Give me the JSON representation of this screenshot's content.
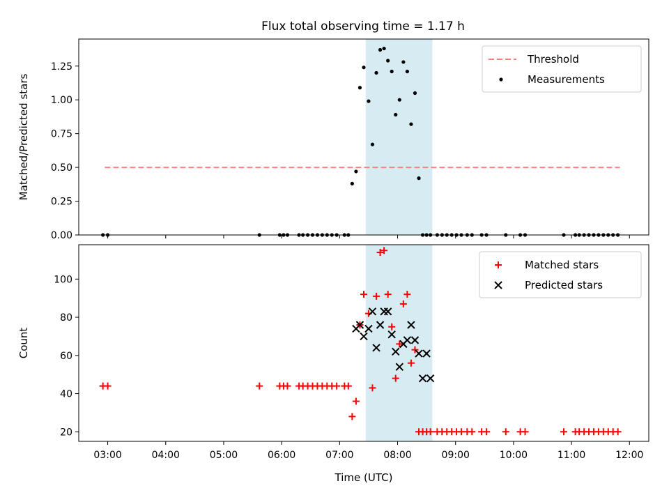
{
  "title": "Flux total observing time = 1.17 h",
  "chart_data": [
    {
      "type": "scatter",
      "ylabel": "Matched/Predicted stars",
      "xlim": [
        "02:30",
        "12:20"
      ],
      "ylim": [
        0,
        1.45
      ],
      "yticks": [
        0,
        0.25,
        0.5,
        0.75,
        1.0,
        1.25
      ],
      "ytick_labels": [
        "0.00",
        "0.25",
        "0.50",
        "0.75",
        "1.00",
        "1.25"
      ],
      "shaded_region": {
        "x0": "07:27",
        "x1": "08:36",
        "color": "#add8e6"
      },
      "legend_location": "upper right",
      "series": [
        {
          "name": "Threshold",
          "kind": "dashed-line",
          "color": "#ff7f7f",
          "x": [
            "02:57",
            "11:50"
          ],
          "y": [
            0.5,
            0.5
          ]
        },
        {
          "name": "Measurements",
          "kind": "dots",
          "color": "#000000",
          "x": [
            "02:55",
            "03:00",
            "05:37",
            "05:58",
            "06:02",
            "06:06",
            "06:18",
            "06:22",
            "06:27",
            "06:32",
            "06:37",
            "06:42",
            "06:47",
            "06:52",
            "06:57",
            "07:05",
            "07:09",
            "07:13",
            "07:17",
            "07:21",
            "07:25",
            "07:30",
            "07:34",
            "07:38",
            "07:42",
            "07:46",
            "07:50",
            "07:54",
            "07:58",
            "08:02",
            "08:06",
            "08:10",
            "08:14",
            "08:18",
            "08:22",
            "08:26",
            "08:30",
            "08:34",
            "08:41",
            "08:46",
            "08:51",
            "08:56",
            "09:01",
            "09:06",
            "09:12",
            "09:17",
            "09:27",
            "09:32",
            "09:52",
            "10:07",
            "10:12",
            "10:52",
            "11:04",
            "11:08",
            "11:13",
            "11:18",
            "11:23",
            "11:28",
            "11:33",
            "11:38",
            "11:43",
            "11:48"
          ],
          "y": [
            0,
            0,
            0,
            0,
            0,
            0,
            0,
            0,
            0,
            0,
            0,
            0,
            0,
            0,
            0,
            0,
            0,
            0.38,
            0.47,
            1.09,
            1.24,
            0.99,
            0.67,
            1.2,
            1.37,
            1.38,
            1.29,
            1.21,
            0.89,
            1.0,
            1.28,
            1.21,
            0.82,
            1.05,
            0.42,
            0,
            0,
            0,
            0,
            0,
            0,
            0,
            0,
            0,
            0,
            0,
            0,
            0,
            0,
            0,
            0,
            0,
            0,
            0,
            0,
            0,
            0,
            0,
            0,
            0,
            0,
            0
          ]
        }
      ]
    },
    {
      "type": "scatter",
      "xlabel": "Time (UTC)",
      "ylabel": "Count",
      "xlim": [
        "02:30",
        "12:20"
      ],
      "ylim": [
        15,
        118
      ],
      "xtick_labels": [
        "03:00",
        "04:00",
        "05:00",
        "06:00",
        "07:00",
        "08:00",
        "09:00",
        "10:00",
        "11:00",
        "12:00"
      ],
      "yticks": [
        20,
        40,
        60,
        80,
        100
      ],
      "ytick_labels": [
        "20",
        "40",
        "60",
        "80",
        "100"
      ],
      "shaded_region": {
        "x0": "07:27",
        "x1": "08:36",
        "color": "#add8e6"
      },
      "legend_location": "upper right",
      "series": [
        {
          "name": "Matched stars",
          "kind": "plus",
          "color": "#ff0000",
          "x": [
            "02:55",
            "03:00",
            "05:37",
            "05:58",
            "06:02",
            "06:06",
            "06:18",
            "06:22",
            "06:27",
            "06:32",
            "06:37",
            "06:42",
            "06:47",
            "06:52",
            "06:57",
            "07:05",
            "07:09",
            "07:13",
            "07:17",
            "07:21",
            "07:25",
            "07:30",
            "07:34",
            "07:38",
            "07:42",
            "07:46",
            "07:50",
            "07:54",
            "07:58",
            "08:02",
            "08:06",
            "08:10",
            "08:14",
            "08:18",
            "08:22",
            "08:26",
            "08:30",
            "08:34",
            "08:41",
            "08:46",
            "08:51",
            "08:56",
            "09:01",
            "09:06",
            "09:12",
            "09:17",
            "09:27",
            "09:32",
            "09:52",
            "10:07",
            "10:12",
            "10:52",
            "11:04",
            "11:08",
            "11:13",
            "11:18",
            "11:23",
            "11:28",
            "11:33",
            "11:38",
            "11:43",
            "11:48"
          ],
          "y": [
            44,
            44,
            44,
            44,
            44,
            44,
            44,
            44,
            44,
            44,
            44,
            44,
            44,
            44,
            44,
            44,
            44,
            28,
            36,
            76,
            92,
            82,
            43,
            91,
            114,
            115,
            92,
            75,
            48,
            66,
            87,
            92,
            56,
            63,
            20,
            20,
            20,
            20,
            20,
            20,
            20,
            20,
            20,
            20,
            20,
            20,
            20,
            20,
            20,
            20,
            20,
            20,
            20,
            20,
            20,
            20,
            20,
            20,
            20,
            20,
            20,
            20
          ]
        },
        {
          "name": "Predicted stars",
          "kind": "x",
          "color": "#000000",
          "x": [
            "07:17",
            "07:21",
            "07:25",
            "07:30",
            "07:34",
            "07:38",
            "07:42",
            "07:46",
            "07:50",
            "07:54",
            "07:58",
            "08:02",
            "08:06",
            "08:10",
            "08:14",
            "08:18",
            "08:22",
            "08:26",
            "08:30",
            "08:34"
          ],
          "y": [
            74,
            76,
            70,
            74,
            83,
            64,
            76,
            83,
            83,
            71,
            62,
            54,
            66,
            68,
            76,
            68,
            61,
            48,
            61,
            48
          ]
        }
      ]
    }
  ]
}
